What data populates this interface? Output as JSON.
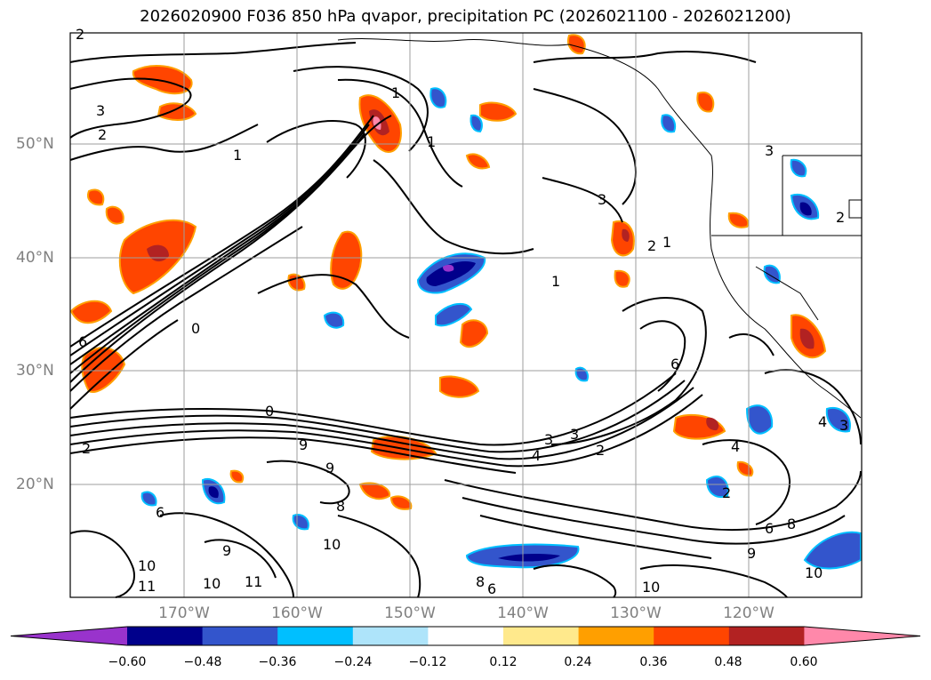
{
  "title": "2026020900 F036 850 hPa qvapor, precipitation PC (2026021100 - 2026021200)",
  "lat_labels": [
    "50°N",
    "40°N",
    "30°N",
    "20°N"
  ],
  "lon_labels": [
    "170°W",
    "160°W",
    "150°W",
    "140°W",
    "130°W",
    "120°W"
  ],
  "colorbar": {
    "colors": [
      "#9933cc",
      "#00008b",
      "#3355cc",
      "#00bfff",
      "#aee4fa",
      "#ffffff",
      "#ffe98c",
      "#ff9f00",
      "#ff4500",
      "#b22222",
      "#ff88aa"
    ],
    "ticks": [
      "−0.60",
      "−0.48",
      "−0.36",
      "−0.24",
      "−0.12",
      "0.12",
      "0.24",
      "0.36",
      "0.48",
      "0.60"
    ]
  },
  "contour_labels": [
    "2",
    "3",
    "2",
    "1",
    "2",
    "1",
    "3",
    "6",
    "3",
    "2",
    "1",
    "2",
    "1",
    "0",
    "0",
    "9",
    "9",
    "3",
    "2",
    "4",
    "6",
    "4",
    "2",
    "9",
    "10",
    "6",
    "6",
    "10",
    "11",
    "10",
    "8",
    "6",
    "10",
    "9",
    "8",
    "10",
    "11",
    "8",
    "3",
    "3",
    "1",
    "4"
  ]
}
